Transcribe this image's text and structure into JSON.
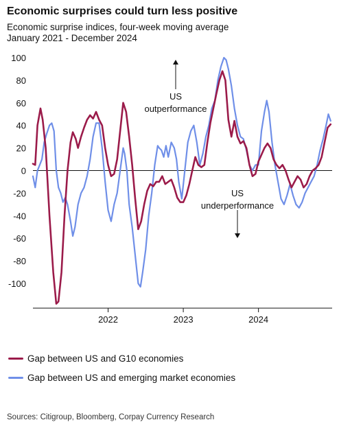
{
  "title": "Economic surprises could turn less positive",
  "subtitle_line1": "Economic surprise indices, four-week moving average",
  "subtitle_line2": "January 2021 - December 2024",
  "source": "Sources: Citigroup, Bloomberg, Corpay Currency Research",
  "colors": {
    "g10": "#9b1b4a",
    "em": "#6f8fe8",
    "axis": "#111111"
  },
  "chart_data": {
    "type": "line",
    "title": "Economic surprises could turn less positive",
    "xlabel": "",
    "ylabel": "",
    "xlim": [
      2021.0,
      2024.98
    ],
    "ylim": [
      -110,
      100
    ],
    "yticks": [
      100,
      80,
      60,
      40,
      20,
      0,
      -20,
      -40,
      -60,
      -80,
      -100
    ],
    "xticks": [
      {
        "value": 2022.0,
        "label": "2022"
      },
      {
        "value": 2023.0,
        "label": "2023"
      },
      {
        "value": 2024.0,
        "label": "2024"
      }
    ],
    "grid": false,
    "legend_position": "bottom-left",
    "annotations": [
      {
        "text_lines": [
          "US",
          "outperformance"
        ],
        "x": 2022.93,
        "y": 62,
        "arrow": "up"
      },
      {
        "text_lines": [
          "US",
          "underperformance"
        ],
        "x": 2023.73,
        "y": -22,
        "arrow": "down"
      }
    ],
    "series": [
      {
        "name": "Gap between US and G10 economies",
        "color": "#9b1b4a",
        "points": [
          [
            2021.0,
            6
          ],
          [
            2021.03,
            5
          ],
          [
            2021.06,
            40
          ],
          [
            2021.1,
            55
          ],
          [
            2021.13,
            45
          ],
          [
            2021.17,
            20
          ],
          [
            2021.22,
            -40
          ],
          [
            2021.27,
            -90
          ],
          [
            2021.31,
            -118
          ],
          [
            2021.34,
            -116
          ],
          [
            2021.38,
            -90
          ],
          [
            2021.42,
            -40
          ],
          [
            2021.46,
            0
          ],
          [
            2021.5,
            25
          ],
          [
            2021.53,
            34
          ],
          [
            2021.57,
            28
          ],
          [
            2021.6,
            20
          ],
          [
            2021.64,
            30
          ],
          [
            2021.68,
            38
          ],
          [
            2021.72,
            45
          ],
          [
            2021.76,
            49
          ],
          [
            2021.8,
            46
          ],
          [
            2021.84,
            52
          ],
          [
            2021.88,
            45
          ],
          [
            2021.92,
            40
          ],
          [
            2021.96,
            20
          ],
          [
            2022.0,
            5
          ],
          [
            2022.04,
            -5
          ],
          [
            2022.08,
            -3
          ],
          [
            2022.12,
            10
          ],
          [
            2022.16,
            35
          ],
          [
            2022.2,
            60
          ],
          [
            2022.24,
            52
          ],
          [
            2022.28,
            30
          ],
          [
            2022.32,
            5
          ],
          [
            2022.36,
            -25
          ],
          [
            2022.4,
            -52
          ],
          [
            2022.44,
            -45
          ],
          [
            2022.48,
            -30
          ],
          [
            2022.52,
            -18
          ],
          [
            2022.56,
            -12
          ],
          [
            2022.6,
            -14
          ],
          [
            2022.64,
            -10
          ],
          [
            2022.68,
            -10
          ],
          [
            2022.72,
            -5
          ],
          [
            2022.76,
            -12
          ],
          [
            2022.8,
            -10
          ],
          [
            2022.84,
            -8
          ],
          [
            2022.88,
            -15
          ],
          [
            2022.92,
            -24
          ],
          [
            2022.96,
            -28
          ],
          [
            2023.0,
            -28
          ],
          [
            2023.04,
            -22
          ],
          [
            2023.08,
            -12
          ],
          [
            2023.12,
            0
          ],
          [
            2023.16,
            12
          ],
          [
            2023.2,
            5
          ],
          [
            2023.24,
            3
          ],
          [
            2023.28,
            5
          ],
          [
            2023.32,
            25
          ],
          [
            2023.36,
            42
          ],
          [
            2023.4,
            55
          ],
          [
            2023.44,
            68
          ],
          [
            2023.48,
            80
          ],
          [
            2023.52,
            88
          ],
          [
            2023.56,
            80
          ],
          [
            2023.6,
            45
          ],
          [
            2023.64,
            30
          ],
          [
            2023.68,
            44
          ],
          [
            2023.72,
            30
          ],
          [
            2023.76,
            24
          ],
          [
            2023.8,
            26
          ],
          [
            2023.84,
            20
          ],
          [
            2023.88,
            5
          ],
          [
            2023.92,
            -5
          ],
          [
            2023.96,
            -3
          ],
          [
            2024.0,
            8
          ],
          [
            2024.04,
            14
          ],
          [
            2024.08,
            20
          ],
          [
            2024.12,
            24
          ],
          [
            2024.16,
            20
          ],
          [
            2024.2,
            10
          ],
          [
            2024.24,
            5
          ],
          [
            2024.28,
            2
          ],
          [
            2024.32,
            5
          ],
          [
            2024.36,
            0
          ],
          [
            2024.4,
            -8
          ],
          [
            2024.44,
            -15
          ],
          [
            2024.48,
            -10
          ],
          [
            2024.52,
            -5
          ],
          [
            2024.56,
            -8
          ],
          [
            2024.6,
            -15
          ],
          [
            2024.64,
            -12
          ],
          [
            2024.68,
            -5
          ],
          [
            2024.72,
            0
          ],
          [
            2024.76,
            2
          ],
          [
            2024.8,
            5
          ],
          [
            2024.84,
            12
          ],
          [
            2024.88,
            25
          ],
          [
            2024.92,
            38
          ],
          [
            2024.96,
            41
          ]
        ]
      },
      {
        "name": "Gap between US and emerging market economies",
        "color": "#6f8fe8",
        "points": [
          [
            2021.0,
            -5
          ],
          [
            2021.03,
            -15
          ],
          [
            2021.06,
            0
          ],
          [
            2021.09,
            5
          ],
          [
            2021.12,
            10
          ],
          [
            2021.15,
            25
          ],
          [
            2021.18,
            32
          ],
          [
            2021.22,
            40
          ],
          [
            2021.25,
            42
          ],
          [
            2021.28,
            35
          ],
          [
            2021.31,
            0
          ],
          [
            2021.34,
            -15
          ],
          [
            2021.37,
            -20
          ],
          [
            2021.4,
            -28
          ],
          [
            2021.43,
            -24
          ],
          [
            2021.46,
            -30
          ],
          [
            2021.5,
            -45
          ],
          [
            2021.53,
            -58
          ],
          [
            2021.56,
            -50
          ],
          [
            2021.6,
            -30
          ],
          [
            2021.64,
            -20
          ],
          [
            2021.68,
            -15
          ],
          [
            2021.72,
            -5
          ],
          [
            2021.76,
            10
          ],
          [
            2021.8,
            30
          ],
          [
            2021.84,
            42
          ],
          [
            2021.88,
            42
          ],
          [
            2021.92,
            20
          ],
          [
            2021.96,
            -10
          ],
          [
            2022.0,
            -35
          ],
          [
            2022.04,
            -45
          ],
          [
            2022.08,
            -30
          ],
          [
            2022.12,
            -20
          ],
          [
            2022.16,
            0
          ],
          [
            2022.2,
            20
          ],
          [
            2022.22,
            15
          ],
          [
            2022.25,
            0
          ],
          [
            2022.28,
            -30
          ],
          [
            2022.32,
            -50
          ],
          [
            2022.36,
            -75
          ],
          [
            2022.4,
            -100
          ],
          [
            2022.43,
            -103
          ],
          [
            2022.46,
            -90
          ],
          [
            2022.5,
            -70
          ],
          [
            2022.54,
            -40
          ],
          [
            2022.58,
            -20
          ],
          [
            2022.62,
            5
          ],
          [
            2022.66,
            22
          ],
          [
            2022.68,
            20
          ],
          [
            2022.71,
            18
          ],
          [
            2022.74,
            12
          ],
          [
            2022.77,
            22
          ],
          [
            2022.8,
            12
          ],
          [
            2022.84,
            25
          ],
          [
            2022.88,
            20
          ],
          [
            2022.91,
            10
          ],
          [
            2022.94,
            -10
          ],
          [
            2022.98,
            -25
          ],
          [
            2023.02,
            0
          ],
          [
            2023.06,
            25
          ],
          [
            2023.1,
            35
          ],
          [
            2023.14,
            40
          ],
          [
            2023.18,
            25
          ],
          [
            2023.22,
            5
          ],
          [
            2023.26,
            15
          ],
          [
            2023.3,
            30
          ],
          [
            2023.34,
            40
          ],
          [
            2023.38,
            55
          ],
          [
            2023.42,
            62
          ],
          [
            2023.46,
            80
          ],
          [
            2023.5,
            92
          ],
          [
            2023.54,
            100
          ],
          [
            2023.57,
            98
          ],
          [
            2023.6,
            90
          ],
          [
            2023.64,
            75
          ],
          [
            2023.68,
            55
          ],
          [
            2023.72,
            40
          ],
          [
            2023.76,
            30
          ],
          [
            2023.8,
            28
          ],
          [
            2023.84,
            18
          ],
          [
            2023.88,
            5
          ],
          [
            2023.92,
            0
          ],
          [
            2023.96,
            5
          ],
          [
            2024.0,
            5
          ],
          [
            2024.04,
            35
          ],
          [
            2024.08,
            52
          ],
          [
            2024.11,
            62
          ],
          [
            2024.14,
            52
          ],
          [
            2024.18,
            25
          ],
          [
            2024.22,
            5
          ],
          [
            2024.26,
            -10
          ],
          [
            2024.3,
            -25
          ],
          [
            2024.34,
            -30
          ],
          [
            2024.38,
            -22
          ],
          [
            2024.42,
            -12
          ],
          [
            2024.46,
            -22
          ],
          [
            2024.5,
            -30
          ],
          [
            2024.54,
            -33
          ],
          [
            2024.58,
            -28
          ],
          [
            2024.62,
            -20
          ],
          [
            2024.66,
            -15
          ],
          [
            2024.7,
            -10
          ],
          [
            2024.74,
            -5
          ],
          [
            2024.78,
            5
          ],
          [
            2024.82,
            18
          ],
          [
            2024.86,
            28
          ],
          [
            2024.9,
            40
          ],
          [
            2024.93,
            50
          ],
          [
            2024.96,
            44
          ]
        ]
      }
    ]
  }
}
